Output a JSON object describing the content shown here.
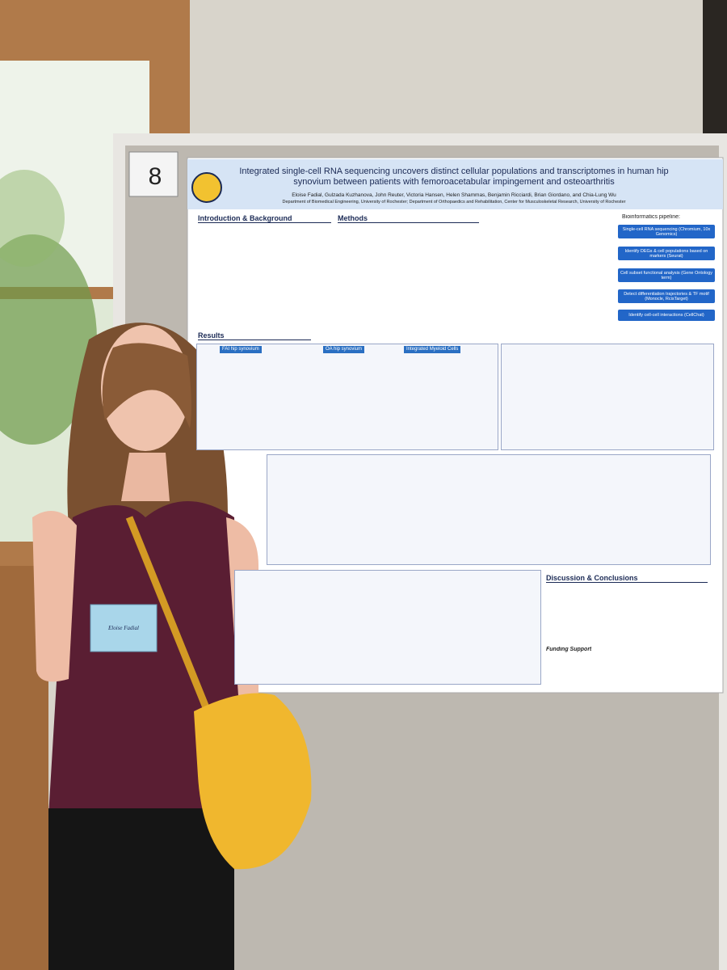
{
  "board_number": "8",
  "poster": {
    "title": "Integrated single-cell RNA sequencing uncovers distinct cellular populations and transcriptomes in human hip synovium between patients with femoroacetabular impingement and osteoarthritis",
    "authors": "Eloise Fadial, Gulzada Kuzhanova, John Reuter, Victoria Hansen, Helen Shammas, Benjamin Ricciardi, Brian Giordano, and Chia-Lung Wu",
    "affiliations": "Department of Biomedical Engineering, University of Rochester; Department of Orthopaedics and Rehabilitation, Center for Musculoskeletal Research, University of Rochester",
    "sections": [
      "Introduction & Background",
      "Methods",
      "Results",
      "Discussion & Conclusions"
    ],
    "pipeline_title": "Bioinformatics pipeline:",
    "pipeline_steps": [
      "Single-cell RNA sequencing (Chromium, 10x Genomics)",
      "Identify DEGs & cell populations based on markers (Seurat)",
      "Cell subset functional analysis (Gene Ontology term)",
      "Detect differentiation trajectories & TF motif (Monocle, RcisTarget)",
      "Identify cell-cell interactions (CellChat)"
    ],
    "panel_labels": [
      "FAI hip synovium",
      "OA hip synovium",
      "Integrated Myeloid Cells"
    ],
    "funding_title": "Funding Support"
  },
  "badge": {
    "name": "Eloise Fadial"
  }
}
